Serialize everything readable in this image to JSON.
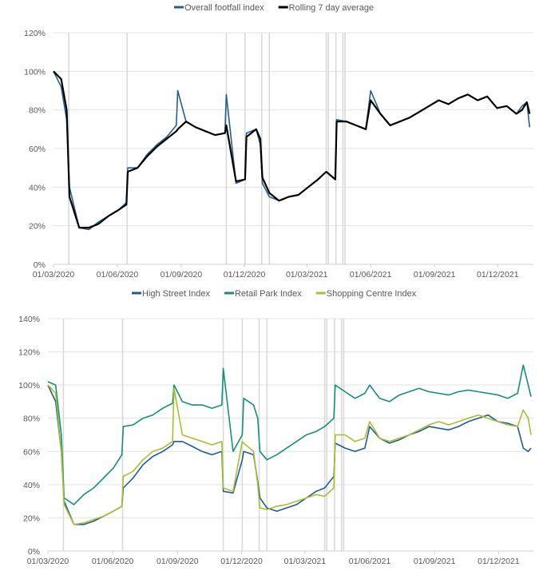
{
  "chart_data": [
    {
      "type": "line",
      "title": "",
      "xlabel": "",
      "ylabel": "",
      "ylim": [
        0,
        120
      ],
      "yticks": [
        "0%",
        "20%",
        "40%",
        "60%",
        "80%",
        "100%",
        "120%"
      ],
      "ytick_values": [
        0,
        20,
        40,
        60,
        80,
        100,
        120
      ],
      "xlim": [
        "2020-03-01",
        "2022-01-18"
      ],
      "xticks": [
        "01/03/2020",
        "01/06/2020",
        "01/09/2020",
        "01/12/2020",
        "01/03/2021",
        "01/06/2021",
        "01/09/2021",
        "01/12/2021"
      ],
      "xtick_dates": [
        "2020-03-01",
        "2020-06-01",
        "2020-09-01",
        "2020-12-01",
        "2021-03-01",
        "2021-06-01",
        "2021-09-01",
        "2021-12-01"
      ],
      "grid": "horizontal",
      "legend": "top",
      "event_lines": [
        "2020-03-23",
        "2020-06-15",
        "2020-11-05",
        "2020-12-02",
        "2020-12-26",
        "2021-01-06",
        "2021-03-29",
        "2021-04-01",
        "2021-04-12",
        "2021-04-22",
        "2021-04-25"
      ],
      "x": [
        "2020-03-01",
        "2020-03-12",
        "2020-03-20",
        "2020-03-24",
        "2020-04-07",
        "2020-04-21",
        "2020-05-05",
        "2020-05-19",
        "2020-06-02",
        "2020-06-14",
        "2020-06-16",
        "2020-06-30",
        "2020-07-14",
        "2020-07-28",
        "2020-08-11",
        "2020-08-25",
        "2020-08-27",
        "2020-09-08",
        "2020-09-22",
        "2020-10-06",
        "2020-10-20",
        "2020-11-03",
        "2020-11-05",
        "2020-11-19",
        "2020-12-02",
        "2020-12-04",
        "2020-12-18",
        "2020-12-24",
        "2020-12-27",
        "2021-01-06",
        "2021-01-20",
        "2021-02-03",
        "2021-02-17",
        "2021-03-03",
        "2021-03-17",
        "2021-03-29",
        "2021-04-11",
        "2021-04-13",
        "2021-04-27",
        "2021-05-11",
        "2021-05-25",
        "2021-06-01",
        "2021-06-15",
        "2021-06-29",
        "2021-07-13",
        "2021-07-27",
        "2021-08-10",
        "2021-08-24",
        "2021-09-07",
        "2021-09-21",
        "2021-10-05",
        "2021-10-19",
        "2021-11-02",
        "2021-11-16",
        "2021-11-30",
        "2021-12-14",
        "2021-12-28",
        "2022-01-05",
        "2022-01-12",
        "2022-01-16"
      ],
      "series": [
        {
          "name": "Overall footfall index",
          "color": "#255e91",
          "values": [
            100,
            92,
            75,
            40,
            19,
            18,
            22,
            25,
            28,
            32,
            50,
            50,
            57,
            62,
            66,
            72,
            90,
            74,
            71,
            69,
            67,
            68,
            88,
            42,
            44,
            68,
            70,
            62,
            42,
            35,
            33,
            35,
            36,
            40,
            44,
            48,
            44,
            75,
            74,
            72,
            70,
            90,
            78,
            72,
            74,
            76,
            79,
            82,
            85,
            83,
            86,
            88,
            85,
            87,
            81,
            82,
            78,
            82,
            84,
            71
          ]
        },
        {
          "name": "Rolling 7 day average",
          "color": "#000000",
          "values": [
            100,
            96,
            80,
            35,
            19,
            19,
            21,
            25,
            28,
            31,
            48,
            50,
            56,
            61,
            65,
            69,
            70,
            74,
            71,
            69,
            67,
            68,
            72,
            43,
            44,
            66,
            70,
            65,
            45,
            37,
            33,
            35,
            36,
            40,
            44,
            48,
            44,
            74,
            74,
            72,
            70,
            85,
            78,
            72,
            74,
            76,
            79,
            82,
            85,
            83,
            86,
            88,
            85,
            87,
            81,
            82,
            78,
            80,
            84,
            78
          ]
        }
      ]
    },
    {
      "type": "line",
      "title": "",
      "xlabel": "",
      "ylabel": "",
      "ylim": [
        0,
        140
      ],
      "yticks": [
        "0%",
        "20%",
        "40%",
        "60%",
        "80%",
        "100%",
        "120%",
        "140%"
      ],
      "ytick_values": [
        0,
        20,
        40,
        60,
        80,
        100,
        120,
        140
      ],
      "xlim": [
        "2020-03-01",
        "2022-01-16"
      ],
      "xticks": [
        "01/03/2020",
        "01/06/2020",
        "01/09/2020",
        "01/12/2020",
        "01/03/2021",
        "01/06/2021",
        "01/09/2021",
        "01/12/2021"
      ],
      "xtick_dates": [
        "2020-03-01",
        "2020-06-01",
        "2020-09-01",
        "2020-12-01",
        "2021-03-01",
        "2021-06-01",
        "2021-09-01",
        "2021-12-01"
      ],
      "grid": "horizontal",
      "legend": "top",
      "event_lines": [
        "2020-03-23",
        "2020-06-15",
        "2020-11-05",
        "2020-12-02",
        "2020-12-26",
        "2021-01-06",
        "2021-03-29",
        "2021-04-01",
        "2021-04-12",
        "2021-04-22",
        "2021-04-25"
      ],
      "x": [
        "2020-03-01",
        "2020-03-12",
        "2020-03-20",
        "2020-03-24",
        "2020-04-07",
        "2020-04-21",
        "2020-05-05",
        "2020-05-19",
        "2020-06-02",
        "2020-06-14",
        "2020-06-16",
        "2020-06-30",
        "2020-07-14",
        "2020-07-28",
        "2020-08-11",
        "2020-08-25",
        "2020-08-27",
        "2020-09-08",
        "2020-09-22",
        "2020-10-06",
        "2020-10-20",
        "2020-11-03",
        "2020-11-05",
        "2020-11-19",
        "2020-12-02",
        "2020-12-04",
        "2020-12-18",
        "2020-12-24",
        "2020-12-27",
        "2021-01-06",
        "2021-01-20",
        "2021-02-03",
        "2021-02-17",
        "2021-03-03",
        "2021-03-17",
        "2021-03-29",
        "2021-04-11",
        "2021-04-13",
        "2021-04-27",
        "2021-05-11",
        "2021-05-25",
        "2021-06-01",
        "2021-06-15",
        "2021-06-29",
        "2021-07-13",
        "2021-07-27",
        "2021-08-10",
        "2021-08-24",
        "2021-09-07",
        "2021-09-21",
        "2021-10-05",
        "2021-10-19",
        "2021-11-02",
        "2021-11-16",
        "2021-11-30",
        "2021-12-14",
        "2021-12-28",
        "2022-01-05",
        "2022-01-12",
        "2022-01-16"
      ],
      "series": [
        {
          "name": "High Street Index",
          "color": "#1f5c99",
          "values": [
            100,
            90,
            60,
            30,
            16,
            16,
            18,
            21,
            24,
            27,
            38,
            44,
            52,
            57,
            60,
            64,
            66,
            66,
            63,
            60,
            58,
            60,
            36,
            35,
            55,
            60,
            58,
            42,
            32,
            26,
            24,
            26,
            28,
            32,
            36,
            38,
            45,
            65,
            62,
            60,
            62,
            75,
            68,
            65,
            67,
            70,
            72,
            75,
            74,
            73,
            75,
            78,
            80,
            82,
            78,
            77,
            75,
            62,
            60,
            62
          ]
        },
        {
          "name": "Retail Park Index",
          "color": "#13907a",
          "values": [
            102,
            100,
            70,
            32,
            28,
            34,
            38,
            44,
            50,
            58,
            75,
            76,
            80,
            82,
            86,
            89,
            100,
            90,
            88,
            88,
            86,
            88,
            110,
            60,
            70,
            92,
            88,
            80,
            60,
            55,
            58,
            62,
            66,
            70,
            72,
            75,
            80,
            100,
            96,
            92,
            95,
            100,
            92,
            90,
            94,
            96,
            98,
            96,
            95,
            94,
            96,
            97,
            96,
            95,
            94,
            92,
            95,
            112,
            100,
            93
          ]
        },
        {
          "name": "Shopping Centre Index",
          "color": "#a8c030",
          "values": [
            100,
            95,
            60,
            28,
            16,
            17,
            19,
            21,
            24,
            27,
            45,
            48,
            55,
            60,
            62,
            66,
            98,
            70,
            68,
            66,
            64,
            66,
            38,
            36,
            66,
            65,
            60,
            40,
            26,
            25,
            27,
            28,
            30,
            32,
            34,
            33,
            38,
            70,
            70,
            66,
            68,
            78,
            68,
            66,
            68,
            70,
            73,
            76,
            78,
            76,
            78,
            80,
            82,
            80,
            78,
            76,
            75,
            85,
            80,
            70
          ]
        }
      ]
    }
  ]
}
